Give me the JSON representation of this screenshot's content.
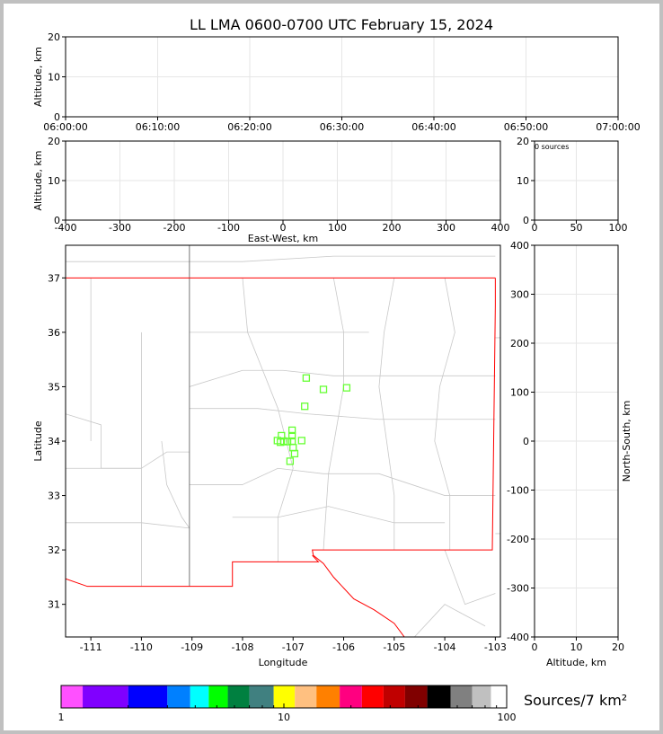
{
  "chart_data": {
    "title": "LL LMA 0600-0700 UTC February 15, 2024",
    "panels": {
      "time_altitude": {
        "type": "scatter",
        "ylabel": "Altitude, km",
        "xlim": [
          "06:00:00",
          "07:00:00"
        ],
        "ylim": [
          0,
          20
        ],
        "xticks": [
          "06:00:00",
          "06:10:00",
          "06:20:00",
          "06:30:00",
          "06:40:00",
          "06:50:00",
          "07:00:00"
        ],
        "yticks": [
          0,
          10,
          20
        ],
        "points": []
      },
      "ew_altitude": {
        "type": "scatter",
        "xlabel": "East-West, km",
        "ylabel": "Altitude, km",
        "xlim": [
          -400,
          400
        ],
        "ylim": [
          0,
          20
        ],
        "xticks": [
          -400,
          -300,
          -200,
          -100,
          0,
          100,
          200,
          300,
          400
        ],
        "yticks": [
          0,
          10,
          20
        ],
        "points": []
      },
      "histogram": {
        "type": "bar",
        "annotation": "0 sources",
        "xlim": [
          0,
          100
        ],
        "ylim": [
          0,
          20
        ],
        "xticks": [
          0,
          50,
          100
        ],
        "yticks": [
          0,
          10,
          20
        ]
      },
      "plan_view": {
        "type": "scatter",
        "xlabel": "Longitude",
        "ylabel": "Latitude",
        "xlim": [
          -111.5,
          -102.9
        ],
        "ylim": [
          30.4,
          37.6
        ],
        "xticks": [
          -111,
          -110,
          -109,
          -108,
          -107,
          -106,
          -105,
          -104,
          -103
        ],
        "yticks": [
          31,
          32,
          33,
          34,
          35,
          36,
          37
        ],
        "marker_color": "#66ff33",
        "points": [
          {
            "lon": -106.74,
            "lat": 35.16
          },
          {
            "lon": -106.4,
            "lat": 34.95
          },
          {
            "lon": -105.94,
            "lat": 34.98
          },
          {
            "lon": -106.77,
            "lat": 34.64
          },
          {
            "lon": -107.02,
            "lat": 34.2
          },
          {
            "lon": -107.02,
            "lat": 34.1
          },
          {
            "lon": -107.23,
            "lat": 34.1
          },
          {
            "lon": -107.31,
            "lat": 34.01
          },
          {
            "lon": -107.18,
            "lat": 34.0
          },
          {
            "lon": -107.11,
            "lat": 33.99
          },
          {
            "lon": -107.02,
            "lat": 34.0
          },
          {
            "lon": -107.25,
            "lat": 33.98
          },
          {
            "lon": -106.83,
            "lat": 34.01
          },
          {
            "lon": -107.0,
            "lat": 33.88
          },
          {
            "lon": -106.97,
            "lat": 33.77
          },
          {
            "lon": -107.06,
            "lat": 33.63
          }
        ]
      },
      "altitude_ns": {
        "type": "scatter",
        "xlabel": "Altitude, km",
        "ylabel": "North-South, km",
        "xlim": [
          0,
          20
        ],
        "ylim": [
          -400,
          400
        ],
        "xticks": [
          0,
          10,
          20
        ],
        "yticks": [
          -400,
          -300,
          -200,
          -100,
          0,
          100,
          200,
          300,
          400
        ],
        "points": []
      }
    },
    "colorbar": {
      "label": "Sources/7 km²",
      "scale": "log",
      "range": [
        1,
        100
      ],
      "ticks": [
        "1",
        "10",
        "100"
      ],
      "colors": [
        "#ff50ff",
        "#8000ff",
        "#0000ff",
        "#0080ff",
        "#00ffff",
        "#00ff00",
        "#008040",
        "#408080",
        "#ffff00",
        "#ffc080",
        "#ff8000",
        "#ff0080",
        "#ff0000",
        "#c00000",
        "#800000",
        "#000000",
        "#808080",
        "#c0c0c0",
        "#ffffff"
      ]
    }
  }
}
